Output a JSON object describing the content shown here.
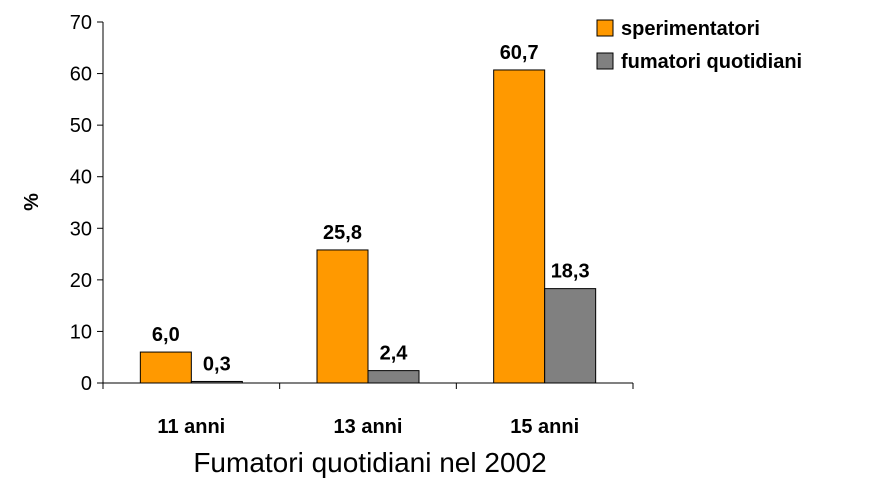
{
  "chart_data": {
    "type": "bar",
    "title": "Fumatori quotidiani nel 2002",
    "xlabel": "",
    "ylabel": "%",
    "categories": [
      "11 anni",
      "13 anni",
      "15 anni"
    ],
    "series": [
      {
        "name": "sperimentatori",
        "values": [
          6.0,
          25.8,
          60.7
        ],
        "labels": [
          "6,0",
          "25,8",
          "60,7"
        ],
        "color": "#ff9900"
      },
      {
        "name": "fumatori quotidiani",
        "values": [
          0.3,
          2.4,
          18.3
        ],
        "labels": [
          "0,3",
          "2,4",
          "18,3"
        ],
        "color": "#808080"
      }
    ],
    "ylim": [
      0,
      70
    ],
    "yticks": [
      0,
      10,
      20,
      30,
      40,
      50,
      60,
      70
    ],
    "grid": false,
    "legend_position": "top-right"
  }
}
